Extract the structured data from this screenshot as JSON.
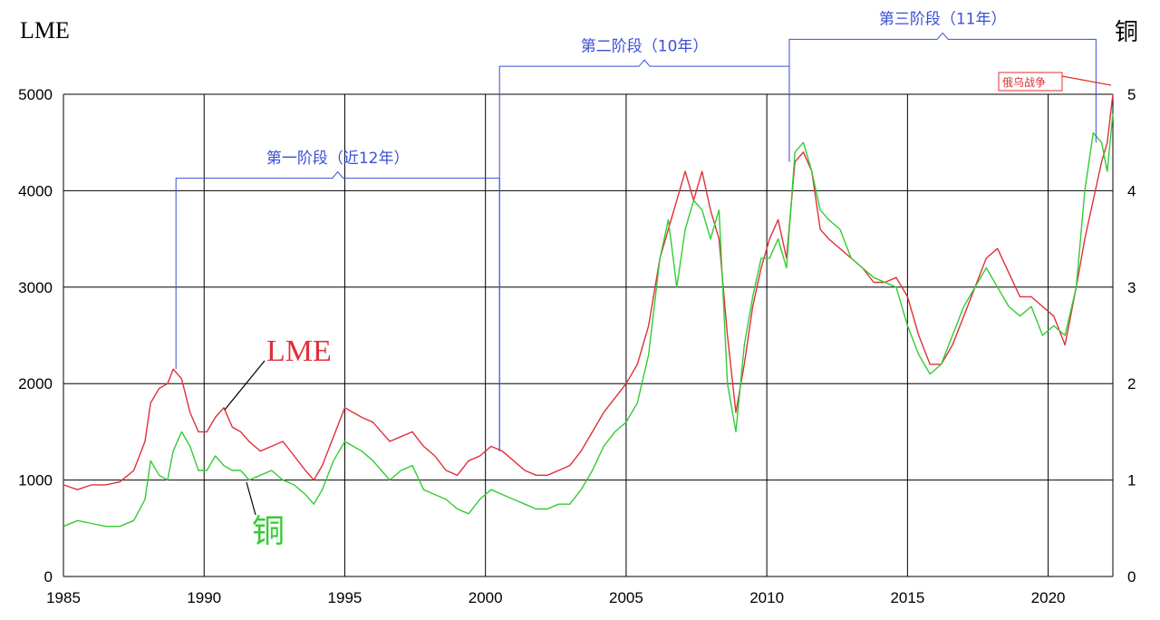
{
  "chart_data": {
    "type": "line",
    "title": "",
    "left_axis_title": "LME",
    "right_axis_title": "铜",
    "x_ticks": [
      "1985",
      "1990",
      "1995",
      "2000",
      "2005",
      "2010",
      "2015",
      "2020"
    ],
    "xlim": [
      1985,
      2022.3
    ],
    "y_left_ticks": [
      "0",
      "1000",
      "2000",
      "3000",
      "4000",
      "5000"
    ],
    "ylim_left": [
      0,
      5000
    ],
    "y_right_ticks": [
      "0",
      "1",
      "2",
      "3",
      "4",
      "5"
    ],
    "ylim_right": [
      0,
      5
    ],
    "grid": true,
    "colors": {
      "lme": "#e0303a",
      "cu": "#33cc33",
      "bracket": "#3b4fd8",
      "grid": "#000000"
    },
    "series": [
      {
        "name": "LME",
        "axis": "left",
        "x": [
          1985.0,
          1985.5,
          1986.0,
          1986.5,
          1987.0,
          1987.5,
          1987.9,
          1988.1,
          1988.4,
          1988.7,
          1988.9,
          1989.2,
          1989.5,
          1989.8,
          1990.1,
          1990.4,
          1990.7,
          1991.0,
          1991.3,
          1991.6,
          1992.0,
          1992.4,
          1992.8,
          1993.2,
          1993.6,
          1993.9,
          1994.2,
          1994.6,
          1995.0,
          1995.3,
          1995.6,
          1996.0,
          1996.3,
          1996.6,
          1997.0,
          1997.4,
          1997.8,
          1998.2,
          1998.6,
          1999.0,
          1999.4,
          1999.8,
          2000.2,
          2000.6,
          2001.0,
          2001.4,
          2001.8,
          2002.2,
          2002.6,
          2003.0,
          2003.4,
          2003.8,
          2004.2,
          2004.6,
          2005.0,
          2005.4,
          2005.8,
          2006.2,
          2006.5,
          2006.8,
          2007.1,
          2007.4,
          2007.7,
          2008.0,
          2008.3,
          2008.6,
          2008.9,
          2009.2,
          2009.5,
          2009.8,
          2010.1,
          2010.4,
          2010.7,
          2011.0,
          2011.3,
          2011.6,
          2011.9,
          2012.2,
          2012.6,
          2013.0,
          2013.4,
          2013.8,
          2014.2,
          2014.6,
          2015.0,
          2015.4,
          2015.8,
          2016.2,
          2016.6,
          2017.0,
          2017.4,
          2017.8,
          2018.2,
          2018.6,
          2019.0,
          2019.4,
          2019.8,
          2020.2,
          2020.6,
          2021.0,
          2021.3,
          2021.6,
          2021.9,
          2022.1,
          2022.3
        ],
        "y": [
          950,
          900,
          950,
          950,
          980,
          1100,
          1400,
          1800,
          1950,
          2000,
          2150,
          2050,
          1700,
          1500,
          1500,
          1650,
          1750,
          1550,
          1500,
          1400,
          1300,
          1350,
          1400,
          1250,
          1100,
          1000,
          1150,
          1450,
          1750,
          1700,
          1650,
          1600,
          1500,
          1400,
          1450,
          1500,
          1350,
          1250,
          1100,
          1050,
          1200,
          1250,
          1350,
          1300,
          1200,
          1100,
          1050,
          1050,
          1100,
          1150,
          1300,
          1500,
          1700,
          1850,
          2000,
          2200,
          2600,
          3300,
          3600,
          3900,
          4200,
          3900,
          4200,
          3800,
          3500,
          2500,
          1700,
          2200,
          2800,
          3200,
          3500,
          3700,
          3300,
          4300,
          4400,
          4200,
          3600,
          3500,
          3400,
          3300,
          3200,
          3050,
          3050,
          3100,
          2900,
          2500,
          2200,
          2200,
          2400,
          2700,
          3000,
          3300,
          3400,
          3150,
          2900,
          2900,
          2800,
          2700,
          2400,
          3000,
          3500,
          3900,
          4300,
          4500,
          5000
        ]
      },
      {
        "name": "铜",
        "axis": "right",
        "x": [
          1985.0,
          1985.5,
          1986.0,
          1986.5,
          1987.0,
          1987.5,
          1987.9,
          1988.1,
          1988.4,
          1988.7,
          1988.9,
          1989.2,
          1989.5,
          1989.8,
          1990.1,
          1990.4,
          1990.7,
          1991.0,
          1991.3,
          1991.6,
          1992.0,
          1992.4,
          1992.8,
          1993.2,
          1993.6,
          1993.9,
          1994.2,
          1994.6,
          1995.0,
          1995.3,
          1995.6,
          1996.0,
          1996.3,
          1996.6,
          1997.0,
          1997.4,
          1997.8,
          1998.2,
          1998.6,
          1999.0,
          1999.4,
          1999.8,
          2000.2,
          2000.6,
          2001.0,
          2001.4,
          2001.8,
          2002.2,
          2002.6,
          2003.0,
          2003.4,
          2003.8,
          2004.2,
          2004.6,
          2005.0,
          2005.4,
          2005.8,
          2006.2,
          2006.5,
          2006.8,
          2007.1,
          2007.4,
          2007.7,
          2008.0,
          2008.3,
          2008.6,
          2008.9,
          2009.2,
          2009.5,
          2009.8,
          2010.1,
          2010.4,
          2010.7,
          2011.0,
          2011.3,
          2011.6,
          2011.9,
          2012.2,
          2012.6,
          2013.0,
          2013.4,
          2013.8,
          2014.2,
          2014.6,
          2015.0,
          2015.4,
          2015.8,
          2016.2,
          2016.6,
          2017.0,
          2017.4,
          2017.8,
          2018.2,
          2018.6,
          2019.0,
          2019.4,
          2019.8,
          2020.2,
          2020.6,
          2021.0,
          2021.3,
          2021.6,
          2021.9,
          2022.1,
          2022.3
        ],
        "y": [
          0.52,
          0.58,
          0.55,
          0.52,
          0.52,
          0.58,
          0.8,
          1.2,
          1.05,
          1.0,
          1.3,
          1.5,
          1.35,
          1.1,
          1.1,
          1.25,
          1.15,
          1.1,
          1.1,
          1.0,
          1.05,
          1.1,
          1.0,
          0.95,
          0.85,
          0.75,
          0.9,
          1.2,
          1.4,
          1.35,
          1.3,
          1.2,
          1.1,
          1.0,
          1.1,
          1.15,
          0.9,
          0.85,
          0.8,
          0.7,
          0.65,
          0.8,
          0.9,
          0.85,
          0.8,
          0.75,
          0.7,
          0.7,
          0.75,
          0.75,
          0.9,
          1.1,
          1.35,
          1.5,
          1.6,
          1.8,
          2.3,
          3.3,
          3.7,
          3.0,
          3.6,
          3.9,
          3.8,
          3.5,
          3.8,
          2.0,
          1.5,
          2.4,
          2.9,
          3.3,
          3.3,
          3.5,
          3.2,
          4.4,
          4.5,
          4.2,
          3.8,
          3.7,
          3.6,
          3.3,
          3.2,
          3.1,
          3.05,
          3.0,
          2.6,
          2.3,
          2.1,
          2.2,
          2.5,
          2.8,
          3.0,
          3.2,
          3.0,
          2.8,
          2.7,
          2.8,
          2.5,
          2.6,
          2.5,
          3.0,
          4.0,
          4.6,
          4.5,
          4.2,
          4.8
        ]
      }
    ],
    "annotations": [
      {
        "text": "第一阶段（近12年）",
        "x_start": 1989.0,
        "x_end": 2000.5,
        "y_level": 4130,
        "y_top": 4230,
        "drop_to_left": 2150,
        "drop_to_right": 1300
      },
      {
        "text": "第二阶段（10年）",
        "x_start": 2000.5,
        "x_end": 2010.8,
        "y_level": 5290,
        "y_top": 5390,
        "drop_to_left": 1300,
        "drop_to_right": 4300
      },
      {
        "text": "第三阶段（11年）",
        "x_start": 2010.8,
        "x_end": 2021.7,
        "y_level": 5570,
        "y_top": 5670,
        "drop_to_left": 4300,
        "drop_to_right": 4500
      }
    ],
    "series_labels": {
      "lme": "LME",
      "cu": "铜"
    },
    "event_note": "俄乌战争"
  }
}
